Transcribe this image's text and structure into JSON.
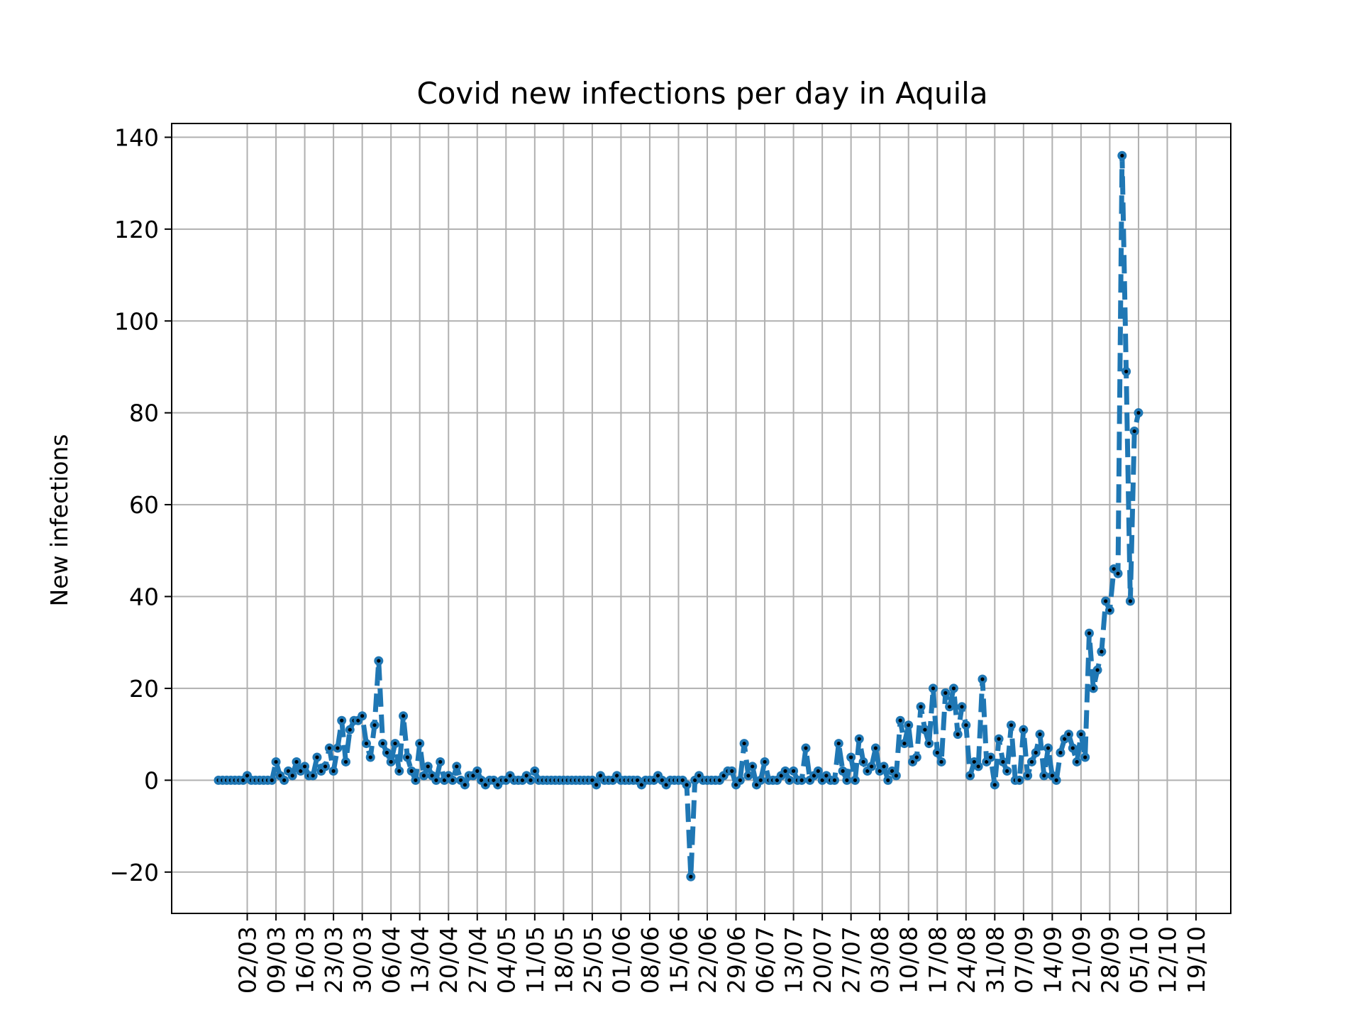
{
  "chart_data": {
    "type": "line",
    "title": "Covid new infections per day in Aquila",
    "xlabel": "",
    "ylabel": "New infections",
    "grid": true,
    "x_start": "2020-02-24",
    "x_tick_labels": [
      "02/03",
      "09/03",
      "16/03",
      "23/03",
      "30/03",
      "06/04",
      "13/04",
      "20/04",
      "27/04",
      "04/05",
      "11/05",
      "18/05",
      "25/05",
      "01/06",
      "08/06",
      "15/06",
      "22/06",
      "29/06",
      "06/07",
      "13/07",
      "20/07",
      "27/07",
      "03/08",
      "10/08",
      "17/08",
      "24/08",
      "31/08",
      "07/09",
      "14/09",
      "21/09",
      "28/09",
      "05/10",
      "12/10",
      "19/10"
    ],
    "y_ticks": [
      -20,
      0,
      20,
      40,
      60,
      80,
      100,
      120,
      140
    ],
    "ylim": [
      -29,
      143
    ],
    "line_color": "#1f77b4",
    "line_style": "dashed",
    "marker_color": "#000000",
    "values": [
      0,
      0,
      0,
      0,
      0,
      0,
      0,
      1,
      0,
      0,
      0,
      0,
      0,
      0,
      4,
      1,
      0,
      2,
      1,
      4,
      2,
      3,
      1,
      1,
      5,
      2,
      3,
      7,
      2,
      7,
      13,
      4,
      11,
      13,
      13,
      14,
      8,
      5,
      12,
      26,
      8,
      6,
      4,
      8,
      2,
      14,
      5,
      2,
      0,
      8,
      1,
      3,
      1,
      0,
      4,
      0,
      1,
      0,
      3,
      0,
      -1,
      1,
      1,
      2,
      0,
      -1,
      0,
      0,
      -1,
      0,
      0,
      1,
      0,
      0,
      0,
      1,
      0,
      2,
      0,
      0,
      0,
      0,
      0,
      0,
      0,
      0,
      0,
      0,
      0,
      0,
      0,
      0,
      -1,
      1,
      0,
      0,
      0,
      1,
      0,
      0,
      0,
      0,
      0,
      -1,
      0,
      0,
      0,
      1,
      0,
      -1,
      0,
      0,
      0,
      0,
      -1,
      -21,
      0,
      1,
      0,
      0,
      0,
      0,
      0,
      1,
      2,
      2,
      -1,
      0,
      8,
      1,
      3,
      -1,
      0,
      4,
      0,
      0,
      0,
      1,
      2,
      0,
      2,
      0,
      0,
      7,
      0,
      1,
      2,
      0,
      1,
      0,
      0,
      8,
      2,
      0,
      5,
      0,
      9,
      4,
      2,
      3,
      7,
      2,
      3,
      0,
      2,
      1,
      13,
      8,
      12,
      4,
      5,
      16,
      11,
      8,
      20,
      6,
      4,
      19,
      16,
      20,
      10,
      16,
      12,
      1,
      4,
      3,
      22,
      4,
      5,
      -1,
      9,
      4,
      2,
      12,
      0,
      0,
      11,
      1,
      4,
      6,
      10,
      1,
      7,
      1,
      0,
      6,
      9,
      10,
      7,
      4,
      10,
      5,
      32,
      20,
      24,
      28,
      39,
      37,
      46,
      45,
      136,
      89,
      39,
      76,
      80
    ]
  }
}
